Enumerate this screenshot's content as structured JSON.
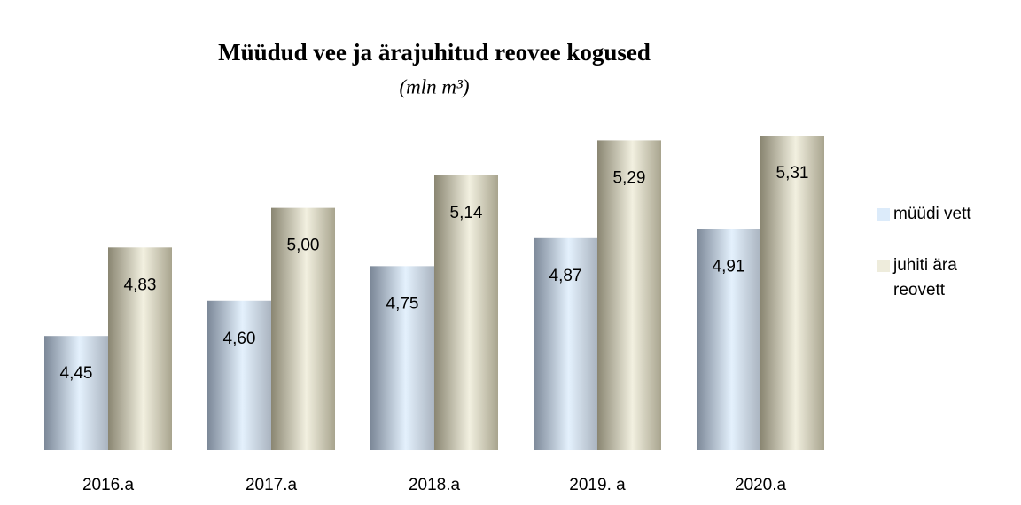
{
  "chart_data": {
    "type": "bar",
    "title": "Müüdud vee ja ärajuhitud reovee kogused",
    "subtitle": "(mln m³)",
    "categories": [
      "2016.a",
      "2017.a",
      "2018.a",
      "2019. a",
      "2020.a"
    ],
    "series": [
      {
        "name": "müüdi vett",
        "color": "#dcebfa",
        "values": [
          4.45,
          4.6,
          4.75,
          4.87,
          4.91
        ],
        "value_labels": [
          "4,45",
          "4,60",
          "4,75",
          "4,87",
          "4,91"
        ]
      },
      {
        "name": "juhiti ära reovett",
        "color": "#eeecdc",
        "values": [
          4.83,
          5.0,
          5.14,
          5.29,
          5.31
        ],
        "value_labels": [
          "4,83",
          "5,00",
          "5,14",
          "5,29",
          "5,31"
        ]
      }
    ],
    "ylim": [
      3.96,
      5.36
    ],
    "grid": false,
    "legend": "right"
  }
}
